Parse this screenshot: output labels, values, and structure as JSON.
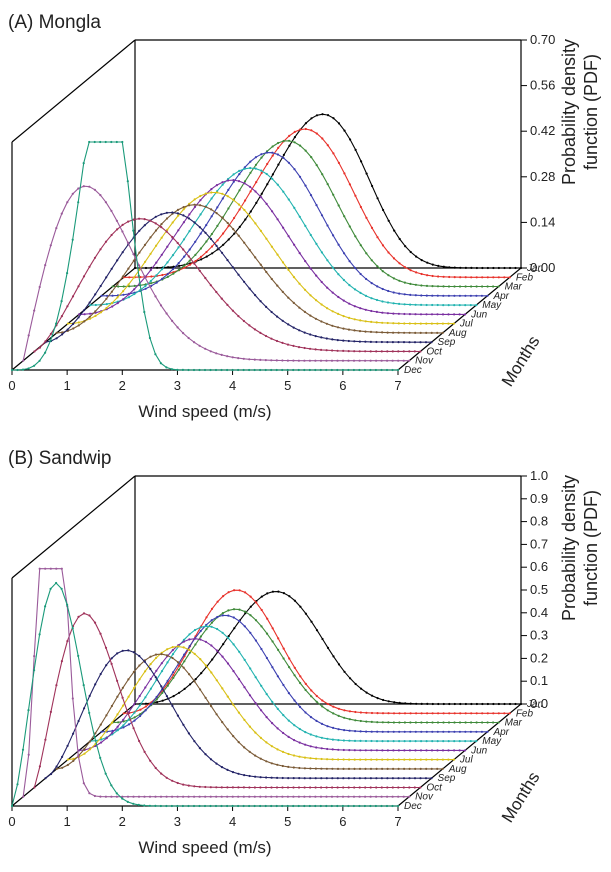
{
  "chart_data": [
    {
      "id": "mongla",
      "type": "line",
      "title": "(A) Mongla",
      "xlabel": "Wind speed (m/s)",
      "ylabel": "Probability density function (PDF)",
      "zlabel": "Months",
      "xlim": [
        0,
        7
      ],
      "ylim": [
        0,
        0.7
      ],
      "xticks": [
        0,
        1,
        2,
        3,
        4,
        5,
        6,
        7
      ],
      "yticks": [
        "0.00",
        "0.14",
        "0.28",
        "0.42",
        "0.56",
        "0.70"
      ],
      "series": [
        {
          "name": "Jan",
          "color": "#000000",
          "weibull": {
            "k": 4.5,
            "c": 3.6
          }
        },
        {
          "name": "Feb",
          "color": "#e8312a",
          "weibull": {
            "k": 4.2,
            "c": 3.5
          }
        },
        {
          "name": "Mar",
          "color": "#3f8a3a",
          "weibull": {
            "k": 4.0,
            "c": 3.4
          }
        },
        {
          "name": "Apr",
          "color": "#3b3fb0",
          "weibull": {
            "k": 3.8,
            "c": 3.3
          }
        },
        {
          "name": "May",
          "color": "#22b3b0",
          "weibull": {
            "k": 3.5,
            "c": 3.2
          }
        },
        {
          "name": "Jun",
          "color": "#7a2fa0",
          "weibull": {
            "k": 3.3,
            "c": 3.1
          }
        },
        {
          "name": "Jul",
          "color": "#d9c016",
          "weibull": {
            "k": 3.1,
            "c": 3.0
          }
        },
        {
          "name": "Aug",
          "color": "#7a5a36",
          "weibull": {
            "k": 2.9,
            "c": 2.9
          }
        },
        {
          "name": "Sep",
          "color": "#222266",
          "weibull": {
            "k": 2.7,
            "c": 2.7
          }
        },
        {
          "name": "Oct",
          "color": "#a0325a",
          "weibull": {
            "k": 2.4,
            "c": 2.4
          }
        },
        {
          "name": "Nov",
          "color": "#9a5a9a",
          "weibull": {
            "k": 2.0,
            "c": 1.6
          }
        },
        {
          "name": "Dec",
          "color": "#1a9a7a",
          "weibull": {
            "k": 4.5,
            "c": 1.8
          }
        }
      ]
    },
    {
      "id": "sandwip",
      "type": "line",
      "title": "(B) Sandwip",
      "xlabel": "Wind speed (m/s)",
      "ylabel": "Probability density function (PDF)",
      "zlabel": "Months",
      "xlim": [
        0,
        7
      ],
      "ylim": [
        0,
        1.0
      ],
      "xticks": [
        0,
        1,
        2,
        3,
        4,
        5,
        6,
        7
      ],
      "yticks": [
        "0.0",
        "0.1",
        "0.2",
        "0.3",
        "0.4",
        "0.5",
        "0.6",
        "0.7",
        "0.8",
        "0.9",
        "1.0"
      ],
      "series": [
        {
          "name": "Jan",
          "color": "#000000",
          "weibull": {
            "k": 3.6,
            "c": 2.8
          }
        },
        {
          "name": "Feb",
          "color": "#e8312a",
          "weibull": {
            "k": 3.2,
            "c": 2.3
          }
        },
        {
          "name": "Mar",
          "color": "#3f8a3a",
          "weibull": {
            "k": 3.2,
            "c": 2.5
          }
        },
        {
          "name": "Apr",
          "color": "#3b3fb0",
          "weibull": {
            "k": 3.3,
            "c": 2.5
          }
        },
        {
          "name": "May",
          "color": "#22b3b0",
          "weibull": {
            "k": 3.1,
            "c": 2.4
          }
        },
        {
          "name": "Jun",
          "color": "#7a2fa0",
          "weibull": {
            "k": 3.0,
            "c": 2.4
          }
        },
        {
          "name": "Jul",
          "color": "#d9c016",
          "weibull": {
            "k": 2.9,
            "c": 2.3
          }
        },
        {
          "name": "Aug",
          "color": "#7a5a36",
          "weibull": {
            "k": 2.8,
            "c": 2.2
          }
        },
        {
          "name": "Sep",
          "color": "#222266",
          "weibull": {
            "k": 2.5,
            "c": 1.8
          }
        },
        {
          "name": "Oct",
          "color": "#a0325a",
          "weibull": {
            "k": 2.2,
            "c": 1.2
          }
        },
        {
          "name": "Nov",
          "color": "#9a5a9a",
          "weibull": {
            "k": 2.8,
            "c": 0.6
          }
        },
        {
          "name": "Dec",
          "color": "#1a9a7a",
          "weibull": {
            "k": 2.4,
            "c": 1.0
          }
        }
      ]
    }
  ]
}
